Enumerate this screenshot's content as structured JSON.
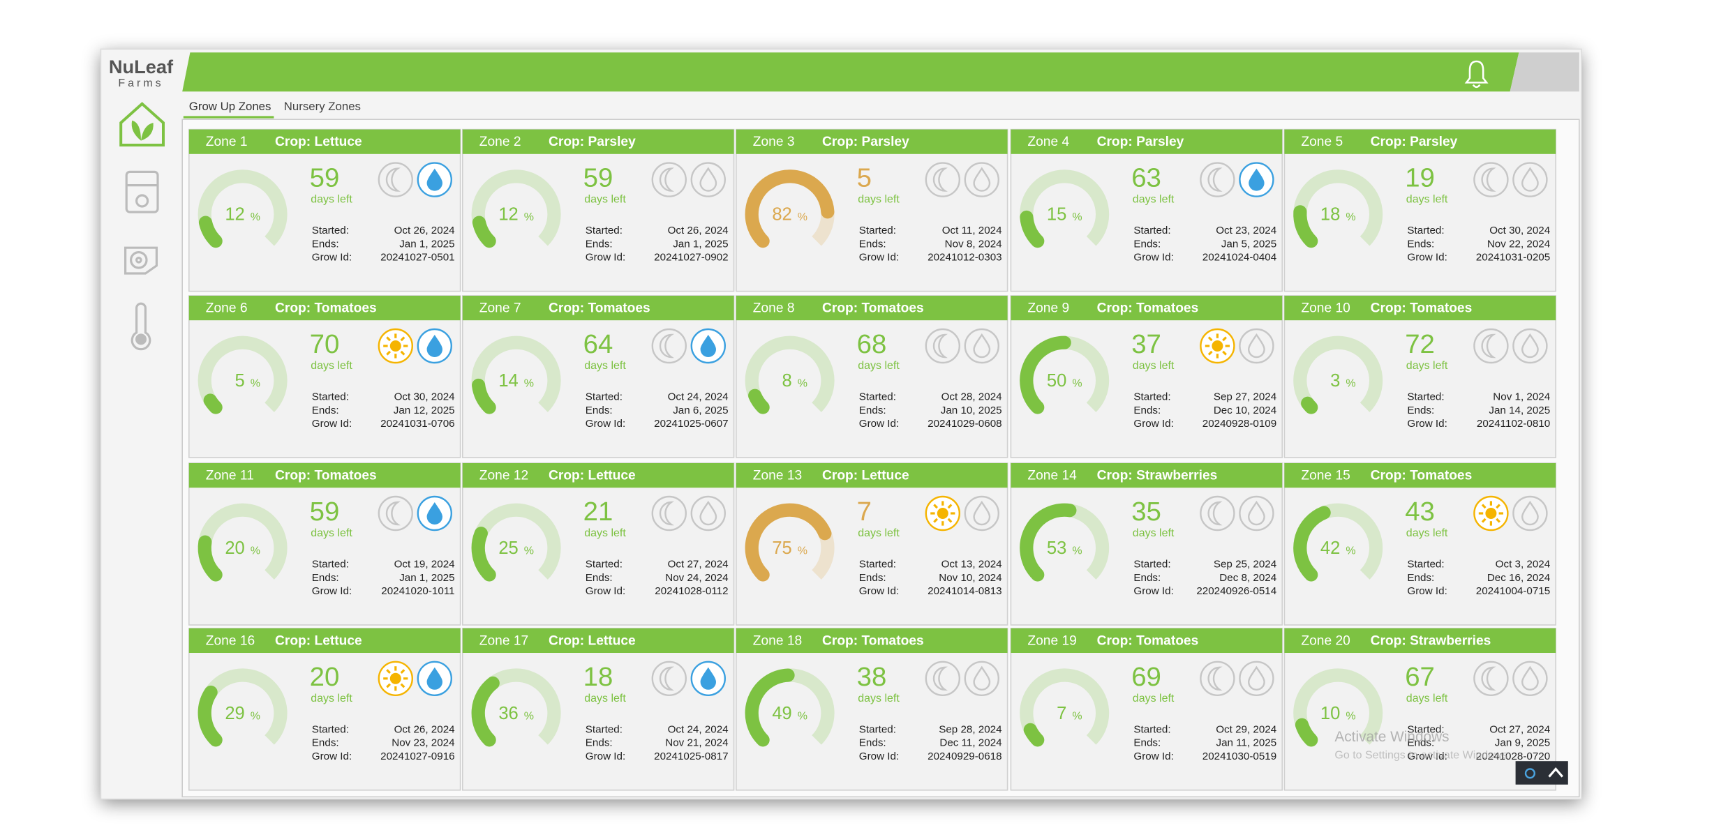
{
  "header": {
    "logo_top": "NuLeaf",
    "logo_bottom": "Farms"
  },
  "tabs": [
    "Grow Up Zones",
    "Nursery Zones"
  ],
  "labels": {
    "days_left": "days left",
    "started": "Started:",
    "ends": "Ends:",
    "grow_id": "Grow Id:",
    "percent_unit": "%"
  },
  "watermark": {
    "title": "Activate Windows",
    "subtitle": "Go to Settings to activate Windows."
  },
  "zones": [
    {
      "zone": "Zone 1",
      "crop": "Crop: Lettuce",
      "percent": 12,
      "days": 59,
      "light": false,
      "water": true,
      "started": "Oct 26, 2024",
      "ends": "Jan 1, 2025",
      "grow_id": "20241027-0501",
      "color": "#7dc242"
    },
    {
      "zone": "Zone 2",
      "crop": "Crop: Parsley",
      "percent": 12,
      "days": 59,
      "light": false,
      "water": false,
      "started": "Oct 26, 2024",
      "ends": "Jan 1, 2025",
      "grow_id": "20241027-0902",
      "color": "#7dc242"
    },
    {
      "zone": "Zone 3",
      "crop": "Crop: Parsley",
      "percent": 82,
      "days": 5,
      "light": false,
      "water": false,
      "started": "Oct 11, 2024",
      "ends": "Nov 8, 2024",
      "grow_id": "20241012-0303",
      "color": "#dba84e"
    },
    {
      "zone": "Zone 4",
      "crop": "Crop: Parsley",
      "percent": 15,
      "days": 63,
      "light": false,
      "water": true,
      "started": "Oct 23, 2024",
      "ends": "Jan 5, 2025",
      "grow_id": "20241024-0404",
      "color": "#7dc242"
    },
    {
      "zone": "Zone 5",
      "crop": "Crop: Parsley",
      "percent": 18,
      "days": 19,
      "light": false,
      "water": false,
      "started": "Oct 30, 2024",
      "ends": "Nov 22, 2024",
      "grow_id": "20241031-0205",
      "color": "#7dc242"
    },
    {
      "zone": "Zone 6",
      "crop": "Crop: Tomatoes",
      "percent": 5,
      "days": 70,
      "light": true,
      "water": true,
      "started": "Oct 30, 2024",
      "ends": "Jan 12, 2025",
      "grow_id": "20241031-0706",
      "color": "#7dc242"
    },
    {
      "zone": "Zone 7",
      "crop": "Crop: Tomatoes",
      "percent": 14,
      "days": 64,
      "light": false,
      "water": true,
      "started": "Oct 24, 2024",
      "ends": "Jan 6, 2025",
      "grow_id": "20241025-0607",
      "color": "#7dc242"
    },
    {
      "zone": "Zone 8",
      "crop": "Crop: Tomatoes",
      "percent": 8,
      "days": 68,
      "light": false,
      "water": false,
      "started": "Oct 28, 2024",
      "ends": "Jan 10, 2025",
      "grow_id": "20241029-0608",
      "color": "#7dc242"
    },
    {
      "zone": "Zone 9",
      "crop": "Crop: Tomatoes",
      "percent": 50,
      "days": 37,
      "light": true,
      "water": false,
      "started": "Sep 27, 2024",
      "ends": "Dec 10, 2024",
      "grow_id": "20240928-0109",
      "color": "#7dc242"
    },
    {
      "zone": "Zone 10",
      "crop": "Crop: Tomatoes",
      "percent": 3,
      "days": 72,
      "light": false,
      "water": false,
      "started": "Nov 1, 2024",
      "ends": "Jan 14, 2025",
      "grow_id": "20241102-0810",
      "color": "#7dc242"
    },
    {
      "zone": "Zone 11",
      "crop": "Crop: Tomatoes",
      "percent": 20,
      "days": 59,
      "light": false,
      "water": true,
      "started": "Oct 19, 2024",
      "ends": "Jan 1, 2025",
      "grow_id": "20241020-1011",
      "color": "#7dc242"
    },
    {
      "zone": "Zone 12",
      "crop": "Crop: Lettuce",
      "percent": 25,
      "days": 21,
      "light": false,
      "water": false,
      "started": "Oct 27, 2024",
      "ends": "Nov 24, 2024",
      "grow_id": "20241028-0112",
      "color": "#7dc242"
    },
    {
      "zone": "Zone 13",
      "crop": "Crop: Lettuce",
      "percent": 75,
      "days": 7,
      "light": true,
      "water": false,
      "started": "Oct 13, 2024",
      "ends": "Nov 10, 2024",
      "grow_id": "20241014-0813",
      "color": "#dba84e"
    },
    {
      "zone": "Zone 14",
      "crop": "Crop: Strawberries",
      "percent": 53,
      "days": 35,
      "light": false,
      "water": false,
      "started": "Sep 25, 2024",
      "ends": "Dec 8, 2024",
      "grow_id": "220240926-0514",
      "color": "#7dc242"
    },
    {
      "zone": "Zone 15",
      "crop": "Crop: Tomatoes",
      "percent": 42,
      "days": 43,
      "light": true,
      "water": false,
      "started": "Oct 3, 2024",
      "ends": "Dec 16, 2024",
      "grow_id": "20241004-0715",
      "color": "#7dc242"
    },
    {
      "zone": "Zone 16",
      "crop": "Crop: Lettuce",
      "percent": 29,
      "days": 20,
      "light": true,
      "water": true,
      "started": "Oct 26, 2024",
      "ends": "Nov 23, 2024",
      "grow_id": "20241027-0916",
      "color": "#7dc242"
    },
    {
      "zone": "Zone 17",
      "crop": "Crop: Lettuce",
      "percent": 36,
      "days": 18,
      "light": false,
      "water": true,
      "started": "Oct 24, 2024",
      "ends": "Nov 21, 2024",
      "grow_id": "20241025-0817",
      "color": "#7dc242"
    },
    {
      "zone": "Zone 18",
      "crop": "Crop: Tomatoes",
      "percent": 49,
      "days": 38,
      "light": false,
      "water": false,
      "started": "Sep 28, 2024",
      "ends": "Dec 11, 2024",
      "grow_id": "20240929-0618",
      "color": "#7dc242"
    },
    {
      "zone": "Zone 19",
      "crop": "Crop: Tomatoes",
      "percent": 7,
      "days": 69,
      "light": false,
      "water": false,
      "started": "Oct 29, 2024",
      "ends": "Jan 11, 2025",
      "grow_id": "20241030-0519",
      "color": "#7dc242"
    },
    {
      "zone": "Zone 20",
      "crop": "Crop: Strawberries",
      "percent": 10,
      "days": 67,
      "light": false,
      "water": false,
      "started": "Oct 27, 2024",
      "ends": "Jan 9, 2025",
      "grow_id": "20241028-0720",
      "color": "#7dc242"
    }
  ]
}
